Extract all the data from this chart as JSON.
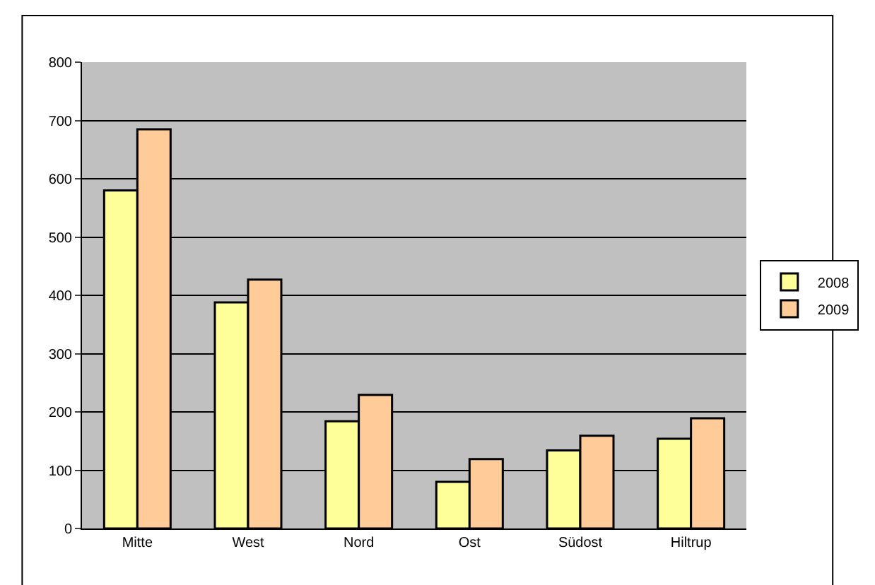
{
  "chart_data": {
    "type": "bar",
    "categories": [
      "Mitte",
      "West",
      "Nord",
      "Ost",
      "Südost",
      "Hiltrup"
    ],
    "series": [
      {
        "name": "2008",
        "color": "#ffff99",
        "values": [
          580,
          388,
          184,
          80,
          134,
          154
        ]
      },
      {
        "name": "2009",
        "color": "#ffcc99",
        "values": [
          685,
          427,
          229,
          119,
          159,
          189
        ]
      }
    ],
    "ylim": [
      0,
      800
    ],
    "yticks": [
      0,
      100,
      200,
      300,
      400,
      500,
      600,
      700,
      800
    ],
    "grid": "y",
    "legend": "right"
  }
}
